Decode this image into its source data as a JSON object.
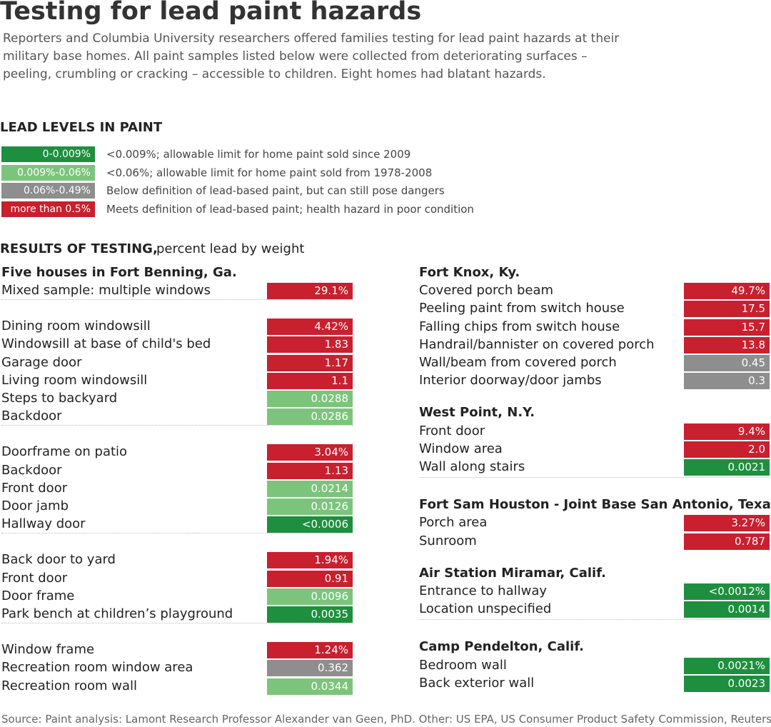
{
  "header": {
    "title": "Testing for lead paint hazards",
    "subtitle": [
      "Reporters and Columbia University researchers offered families testing for lead paint hazards at their",
      "military base homes. All paint samples listed below were collected from deteriorating surfaces –",
      "peeling, crumbling or cracking – accessible to children. Eight homes had blatant hazards."
    ]
  },
  "legend": {
    "title": "LEAD LEVELS IN PAINT",
    "items": [
      {
        "range": "0-0.009%",
        "label": "<0.009%; allowable limit for home paint sold since 2009",
        "color": "#1e8f3e"
      },
      {
        "range": "0.009%-0.06%",
        "label": "<0.06%; allowable limit for home paint sold from 1978-2008",
        "color": "#7cc47c"
      },
      {
        "range": "0.06%-0.49%",
        "label": "Below definition of lead-based paint, but can still pose dangers",
        "color": "#8e8e8e"
      },
      {
        "range": "more than 0.5%",
        "label": "Meets definition of lead-based paint; health hazard in poor condition",
        "color": "#c8202f"
      }
    ]
  },
  "results": {
    "title": "RESULTS OF TESTING,",
    "subtitle": "percent lead by weight",
    "left": {
      "heading": "Five houses in Fort Benning, Ga.",
      "groups": [
        [
          {
            "label": "Mixed sample: multiple windows",
            "value": "29.1%",
            "color": "#c8202f"
          }
        ],
        [
          {
            "label": "Dining room windowsill",
            "value": "4.42%",
            "color": "#c8202f"
          },
          {
            "label": "Windowsill at base of child's bed",
            "value": "1.83",
            "color": "#c8202f"
          },
          {
            "label": "Garage door",
            "value": "1.17",
            "color": "#c8202f"
          },
          {
            "label": "Living room windowsill",
            "value": "1.1",
            "color": "#c8202f"
          },
          {
            "label": "Steps to backyard",
            "value": "0.0288",
            "color": "#7cc47c"
          },
          {
            "label": "Backdoor",
            "value": "0.0286",
            "color": "#7cc47c"
          }
        ],
        [
          {
            "label": "Doorframe on patio",
            "value": "3.04%",
            "color": "#c8202f"
          },
          {
            "label": "Backdoor",
            "value": "1.13",
            "color": "#c8202f"
          },
          {
            "label": "Front door",
            "value": "0.0214",
            "color": "#7cc47c"
          },
          {
            "label": "Door jamb",
            "value": "0.0126",
            "color": "#7cc47c"
          },
          {
            "label": "Hallway door",
            "value": "<0.0006",
            "color": "#1e8f3e"
          }
        ],
        [
          {
            "label": "Back door to yard",
            "value": "1.94%",
            "color": "#c8202f"
          },
          {
            "label": "Front door",
            "value": "0.91",
            "color": "#c8202f"
          },
          {
            "label": "Door frame",
            "value": "0.0096",
            "color": "#7cc47c"
          },
          {
            "label": "Park bench at children’s playground",
            "value": "0.0035",
            "color": "#1e8f3e"
          }
        ],
        [
          {
            "label": "Window frame",
            "value": "1.24%",
            "color": "#c8202f"
          },
          {
            "label": "Recreation room window area",
            "value": "0.362",
            "color": "#8e8e8e"
          },
          {
            "label": "Recreation room wall",
            "value": "0.0344",
            "color": "#7cc47c"
          }
        ]
      ]
    },
    "right": [
      {
        "heading": "Fort Knox, Ky.",
        "rows": [
          {
            "label": "Covered porch beam",
            "value": "49.7%",
            "color": "#c8202f"
          },
          {
            "label": "Peeling paint from switch house",
            "value": "17.5",
            "color": "#c8202f"
          },
          {
            "label": "Falling chips from switch house",
            "value": "15.7",
            "color": "#c8202f"
          },
          {
            "label": "Handrail/bannister on covered porch",
            "value": "13.8",
            "color": "#c8202f"
          },
          {
            "label": "Wall/beam from covered porch",
            "value": "0.45",
            "color": "#8e8e8e"
          },
          {
            "label": "Interior doorway/door jambs",
            "value": "0.3",
            "color": "#8e8e8e"
          }
        ]
      },
      {
        "heading": "West Point, N.Y.",
        "rows": [
          {
            "label": "Front door",
            "value": "9.4%",
            "color": "#c8202f"
          },
          {
            "label": "Window area",
            "value": "2.0",
            "color": "#c8202f"
          },
          {
            "label": "Wall along stairs",
            "value": "0.0021",
            "color": "#1e8f3e"
          }
        ]
      },
      {
        "heading": "Fort Sam Houston - Joint Base San Antonio, Texas",
        "rows": [
          {
            "label": "Porch area",
            "value": "3.27%",
            "color": "#c8202f"
          },
          {
            "label": "Sunroom",
            "value": "0.787",
            "color": "#c8202f"
          }
        ]
      },
      {
        "heading": "Air Station Miramar, Calif.",
        "rows": [
          {
            "label": "Entrance to hallway",
            "value": "<0.0012%",
            "color": "#1e8f3e"
          },
          {
            "label": "Location unspecified",
            "value": "0.0014",
            "color": "#1e8f3e"
          }
        ]
      },
      {
        "heading": "Camp Pendelton, Calif.",
        "rows": [
          {
            "label": "Bedroom wall",
            "value": "0.0021%",
            "color": "#1e8f3e"
          },
          {
            "label": "Back exterior wall",
            "value": "0.0023",
            "color": "#1e8f3e"
          }
        ]
      }
    ]
  },
  "source": "Source: Paint analysis: Lamont Research Professor Alexander van Geen, PhD. Other: US EPA, US Consumer Product Safety Commission, Reuters"
}
